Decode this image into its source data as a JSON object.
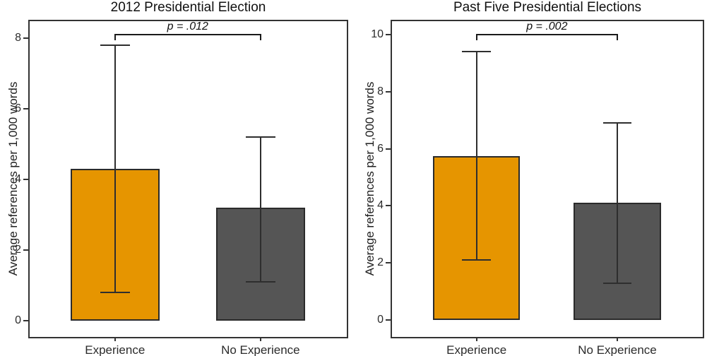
{
  "figure": {
    "ylabel": "Average references per 1,000 words"
  },
  "chart_data": [
    {
      "type": "bar",
      "title": "2012 Presidential Election",
      "ylabel": "Average references per 1,000 words",
      "xlabel": "",
      "categories": [
        "Experience",
        "No Experience"
      ],
      "values": [
        4.3,
        3.2
      ],
      "error_low": [
        0.8,
        1.1
      ],
      "error_high": [
        7.8,
        5.2
      ],
      "significance_label": "p = .012",
      "yticks": [
        0,
        2,
        4,
        6,
        8
      ],
      "ylim": [
        0,
        8
      ],
      "grid": false,
      "legend": "none",
      "bar_colors": [
        "#E69500",
        "#555555"
      ],
      "error_bar_color": "#2e2e2e",
      "layout": {
        "y_render_range": [
          -0.46,
          8.49
        ],
        "bar_centers_pct": [
          26.9,
          72.8
        ],
        "bar_width_pct": 28,
        "cap_width_pct": 9.3,
        "bracket_y": 8.13
      }
    },
    {
      "type": "bar",
      "title": "Past Five Presidential Elections",
      "ylabel": "Average references per 1,000 words",
      "xlabel": "",
      "categories": [
        "Experience",
        "No Experience"
      ],
      "values": [
        5.75,
        4.1
      ],
      "error_low": [
        2.1,
        1.3
      ],
      "error_high": [
        9.4,
        6.9
      ],
      "significance_label": "p = .002",
      "yticks": [
        0,
        2,
        4,
        6,
        8,
        10
      ],
      "ylim": [
        0,
        10
      ],
      "grid": false,
      "legend": "none",
      "bar_colors": [
        "#E69500",
        "#555555"
      ],
      "error_bar_color": "#2e2e2e",
      "layout": {
        "y_render_range": [
          -0.59,
          10.47
        ],
        "bar_centers_pct": [
          27.2,
          72.5
        ],
        "bar_width_pct": 28,
        "cap_width_pct": 9.3,
        "bracket_y": 10.02
      }
    }
  ]
}
